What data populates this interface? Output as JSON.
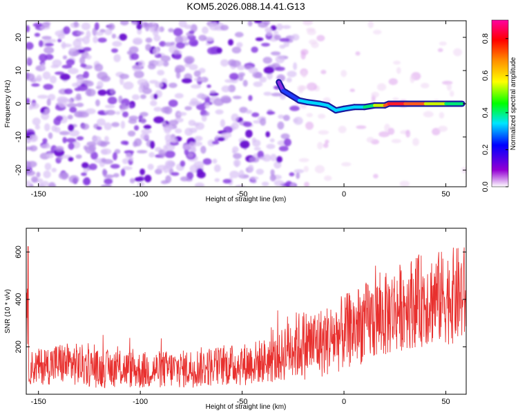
{
  "title": "KOM5.2026.088.14.41.G13",
  "chart_data": [
    {
      "type": "heatmap",
      "title": "KOM5.2026.088.14.41.G13",
      "xlabel": "Height of straight line (km)",
      "ylabel": "Frequency (Hz)",
      "xlim": [
        -156,
        60
      ],
      "ylim": [
        -25,
        25
      ],
      "xticks": [
        -150,
        -100,
        -50,
        0,
        50
      ],
      "yticks": [
        -20,
        -10,
        0,
        10,
        20
      ],
      "colorbar": {
        "label": "Normalized spectral amplitude",
        "range": [
          0.0,
          0.9
        ],
        "ticks": [
          0.0,
          0.2,
          0.4,
          0.6,
          0.8
        ],
        "colormap": [
          "#ffffff",
          "#9400d3",
          "#0000ff",
          "#00e5ff",
          "#00ff00",
          "#ffff00",
          "#ff8c00",
          "#ff0000",
          "#ff00a0"
        ]
      },
      "ridge": {
        "description": "strong-amplitude ridge near 0 Hz, from about -32 km to 58 km",
        "points": [
          {
            "x": -32,
            "y": 6.5,
            "amp": 0.05
          },
          {
            "x": -30,
            "y": 4.0,
            "amp": 0.12
          },
          {
            "x": -26,
            "y": 2.5,
            "amp": 0.2
          },
          {
            "x": -22,
            "y": 1.0,
            "amp": 0.25
          },
          {
            "x": -18,
            "y": 0.5,
            "amp": 0.3
          },
          {
            "x": -12,
            "y": 0.0,
            "amp": 0.35
          },
          {
            "x": -8,
            "y": -0.5,
            "amp": 0.35
          },
          {
            "x": -4,
            "y": -2.0,
            "amp": 0.3
          },
          {
            "x": 0,
            "y": -1.5,
            "amp": 0.3
          },
          {
            "x": 5,
            "y": -1.0,
            "amp": 0.35
          },
          {
            "x": 10,
            "y": -1.0,
            "amp": 0.45
          },
          {
            "x": 15,
            "y": -0.5,
            "amp": 0.5
          },
          {
            "x": 20,
            "y": -0.5,
            "amp": 0.55
          },
          {
            "x": 22,
            "y": 0.0,
            "amp": 0.85
          },
          {
            "x": 30,
            "y": 0.0,
            "amp": 0.8
          },
          {
            "x": 40,
            "y": 0.0,
            "amp": 0.6
          },
          {
            "x": 50,
            "y": 0.0,
            "amp": 0.55
          },
          {
            "x": 58,
            "y": 0.0,
            "amp": 0.45
          }
        ]
      }
    },
    {
      "type": "line",
      "xlabel": "Height of straight line (km)",
      "ylabel": "SNR (10 * v/v)",
      "xlim": [
        -156,
        60
      ],
      "ylim": [
        0,
        700
      ],
      "xticks": [
        -150,
        -100,
        -50,
        0,
        50
      ],
      "yticks": [
        200,
        400,
        600
      ],
      "color": "#e8302e",
      "series": [
        {
          "x": [
            -155,
            -140,
            -130,
            -120,
            -110,
            -100,
            -90,
            -80,
            -70,
            -60,
            -50,
            -40,
            -32,
            -28,
            -20,
            -10,
            0,
            10,
            20,
            30,
            40,
            50,
            58
          ],
          "mean": [
            110,
            130,
            125,
            105,
            110,
            100,
            105,
            105,
            115,
            120,
            125,
            140,
            145,
            200,
            210,
            220,
            260,
            300,
            330,
            380,
            400,
            410,
            420
          ],
          "amplitude": [
            70,
            90,
            90,
            80,
            80,
            80,
            80,
            80,
            85,
            85,
            90,
            95,
            100,
            140,
            150,
            150,
            160,
            170,
            180,
            190,
            200,
            200,
            210
          ]
        }
      ]
    }
  ]
}
